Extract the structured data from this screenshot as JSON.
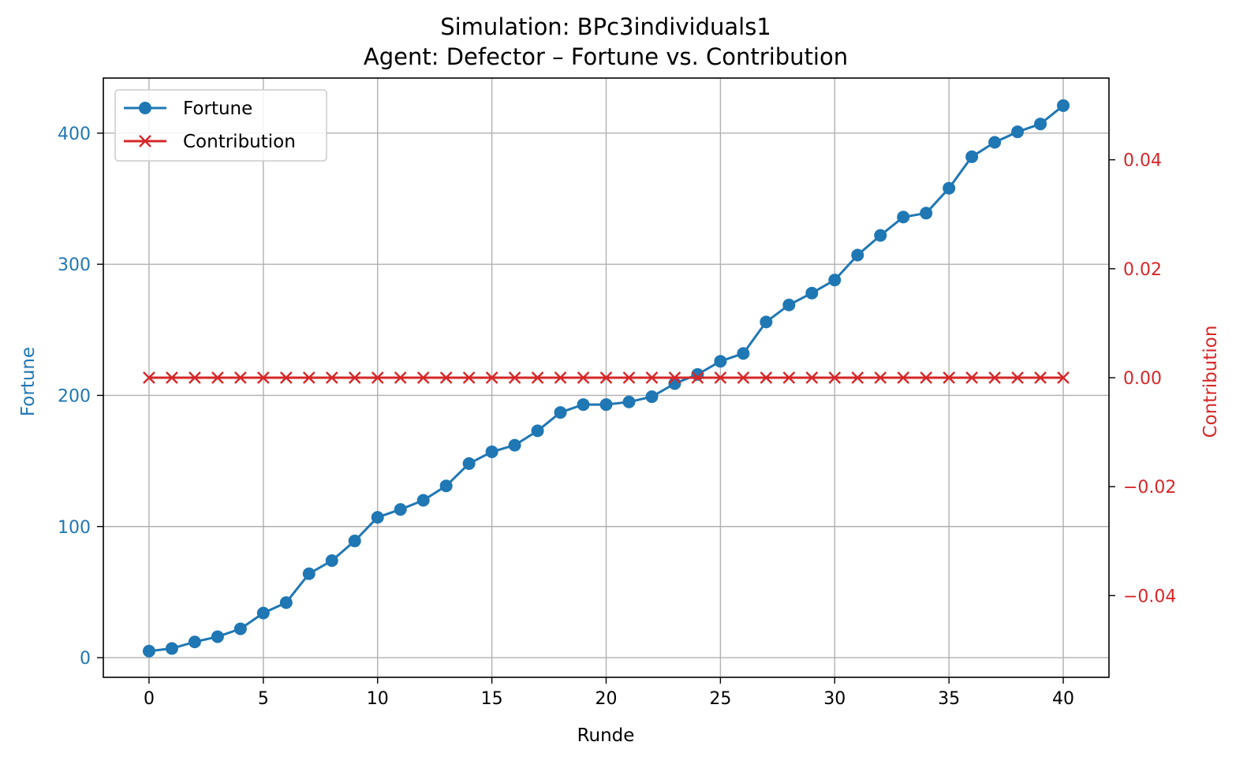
{
  "chart_data": {
    "type": "line",
    "title": "Simulation: BPc3individuals1",
    "subtitle": "Agent: Defector – Fortune vs. Contribution",
    "xlabel": "Runde",
    "ylabel": "Fortune",
    "ylabel_right": "Contribution",
    "xlim": [
      -2,
      42
    ],
    "ylim": [
      -15,
      442
    ],
    "ylim_right": [
      -0.055,
      0.055
    ],
    "xticks": [
      0,
      5,
      10,
      15,
      20,
      25,
      30,
      35,
      40
    ],
    "xtick_labels": [
      "0",
      "5",
      "10",
      "15",
      "20",
      "25",
      "30",
      "35",
      "40"
    ],
    "yticks": [
      0,
      100,
      200,
      300,
      400
    ],
    "ytick_labels": [
      "0",
      "100",
      "200",
      "300",
      "400"
    ],
    "yticks_right": [
      -0.04,
      -0.02,
      0.0,
      0.02,
      0.04
    ],
    "ytick_labels_right": [
      "−0.04",
      "−0.02",
      "0.00",
      "0.02",
      "0.04"
    ],
    "grid": true,
    "legend_position": "top-left",
    "x": [
      0,
      1,
      2,
      3,
      4,
      5,
      6,
      7,
      8,
      9,
      10,
      11,
      12,
      13,
      14,
      15,
      16,
      17,
      18,
      19,
      20,
      21,
      22,
      23,
      24,
      25,
      26,
      27,
      28,
      29,
      30,
      31,
      32,
      33,
      34,
      35,
      36,
      37,
      38,
      39,
      40
    ],
    "series": [
      {
        "name": "Fortune",
        "axis": "left",
        "marker": "circle",
        "color": "#1f77b4",
        "values": [
          5,
          7,
          12,
          16,
          22,
          34,
          42,
          64,
          74,
          89,
          107,
          113,
          120,
          131,
          148,
          157,
          162,
          173,
          187,
          193,
          193,
          195,
          199,
          209,
          216,
          226,
          232,
          256,
          269,
          278,
          288,
          307,
          322,
          336,
          339,
          358,
          382,
          393,
          401,
          407,
          421
        ]
      },
      {
        "name": "Contribution",
        "axis": "right",
        "marker": "x",
        "color": "#d62728",
        "values": [
          0,
          0,
          0,
          0,
          0,
          0,
          0,
          0,
          0,
          0,
          0,
          0,
          0,
          0,
          0,
          0,
          0,
          0,
          0,
          0,
          0,
          0,
          0,
          0,
          0,
          0,
          0,
          0,
          0,
          0,
          0,
          0,
          0,
          0,
          0,
          0,
          0,
          0,
          0,
          0,
          0
        ]
      }
    ]
  }
}
